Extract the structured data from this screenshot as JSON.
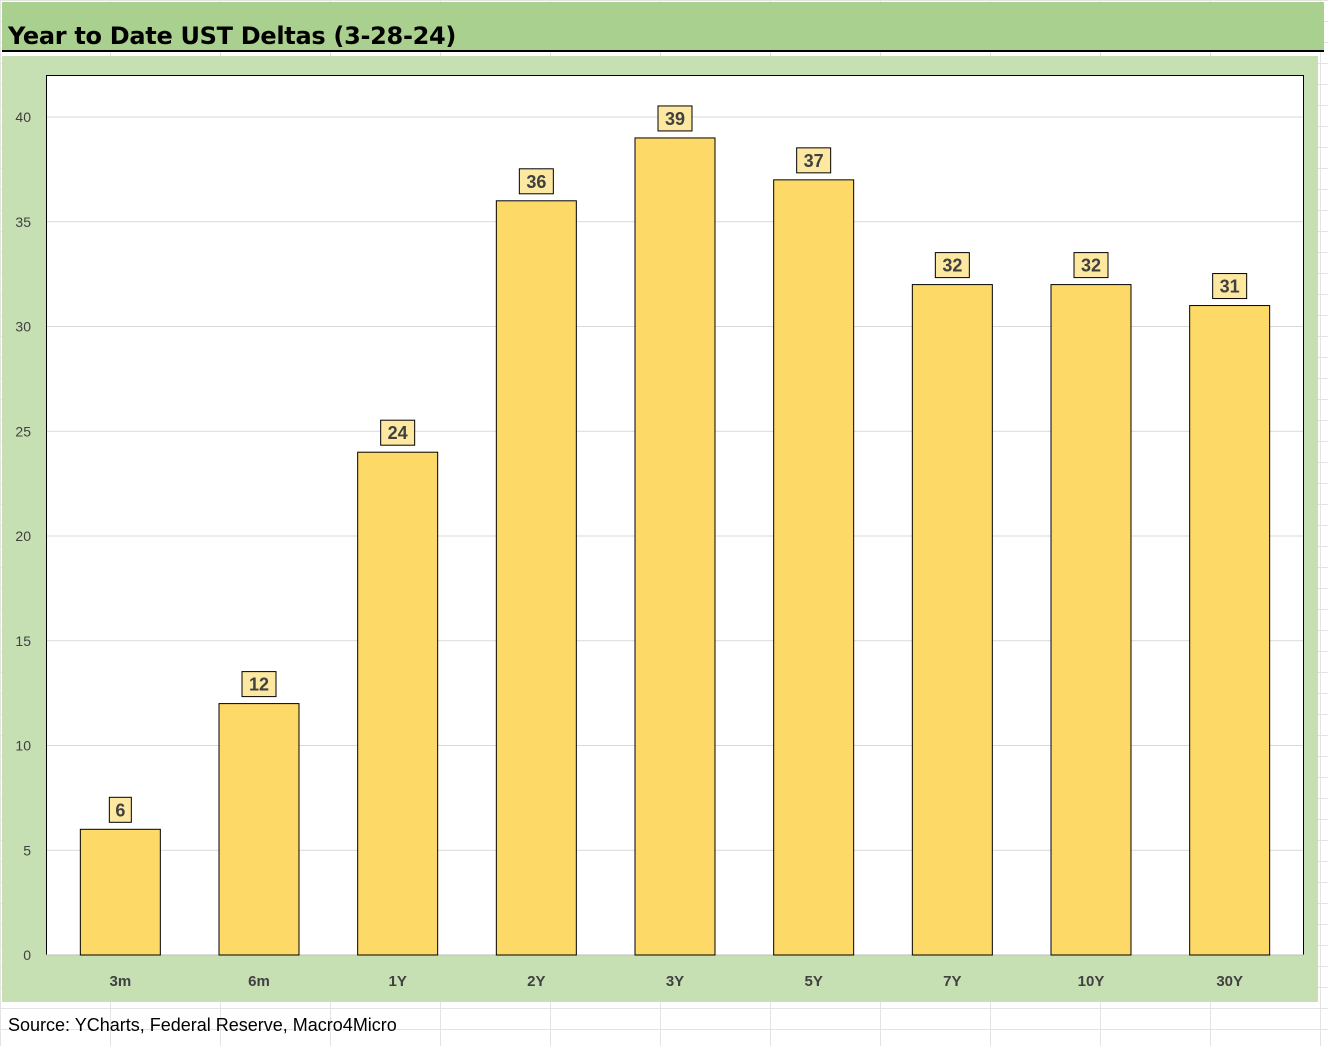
{
  "title": "Year to Date UST Deltas (3-28-24)",
  "source": "Source: YCharts, Federal Reserve, Macro4Micro",
  "colors": {
    "title_bg": "#a9d08e",
    "chart_bg": "#c6e0b4",
    "bar_fill": "#fdd968",
    "label_fill": "#fce8a0"
  },
  "chart_data": {
    "type": "bar",
    "categories": [
      "3m",
      "6m",
      "1Y",
      "2Y",
      "3Y",
      "5Y",
      "7Y",
      "10Y",
      "30Y"
    ],
    "values": [
      6,
      12,
      24,
      36,
      39,
      37,
      32,
      32,
      31
    ],
    "data_labels": [
      "6",
      "12",
      "24",
      "36",
      "39",
      "37",
      "32",
      "32",
      "31"
    ],
    "ylim": [
      0,
      40
    ],
    "yticks": [
      0,
      5,
      10,
      15,
      20,
      25,
      30,
      35,
      40
    ],
    "grid": true,
    "legend": false
  }
}
